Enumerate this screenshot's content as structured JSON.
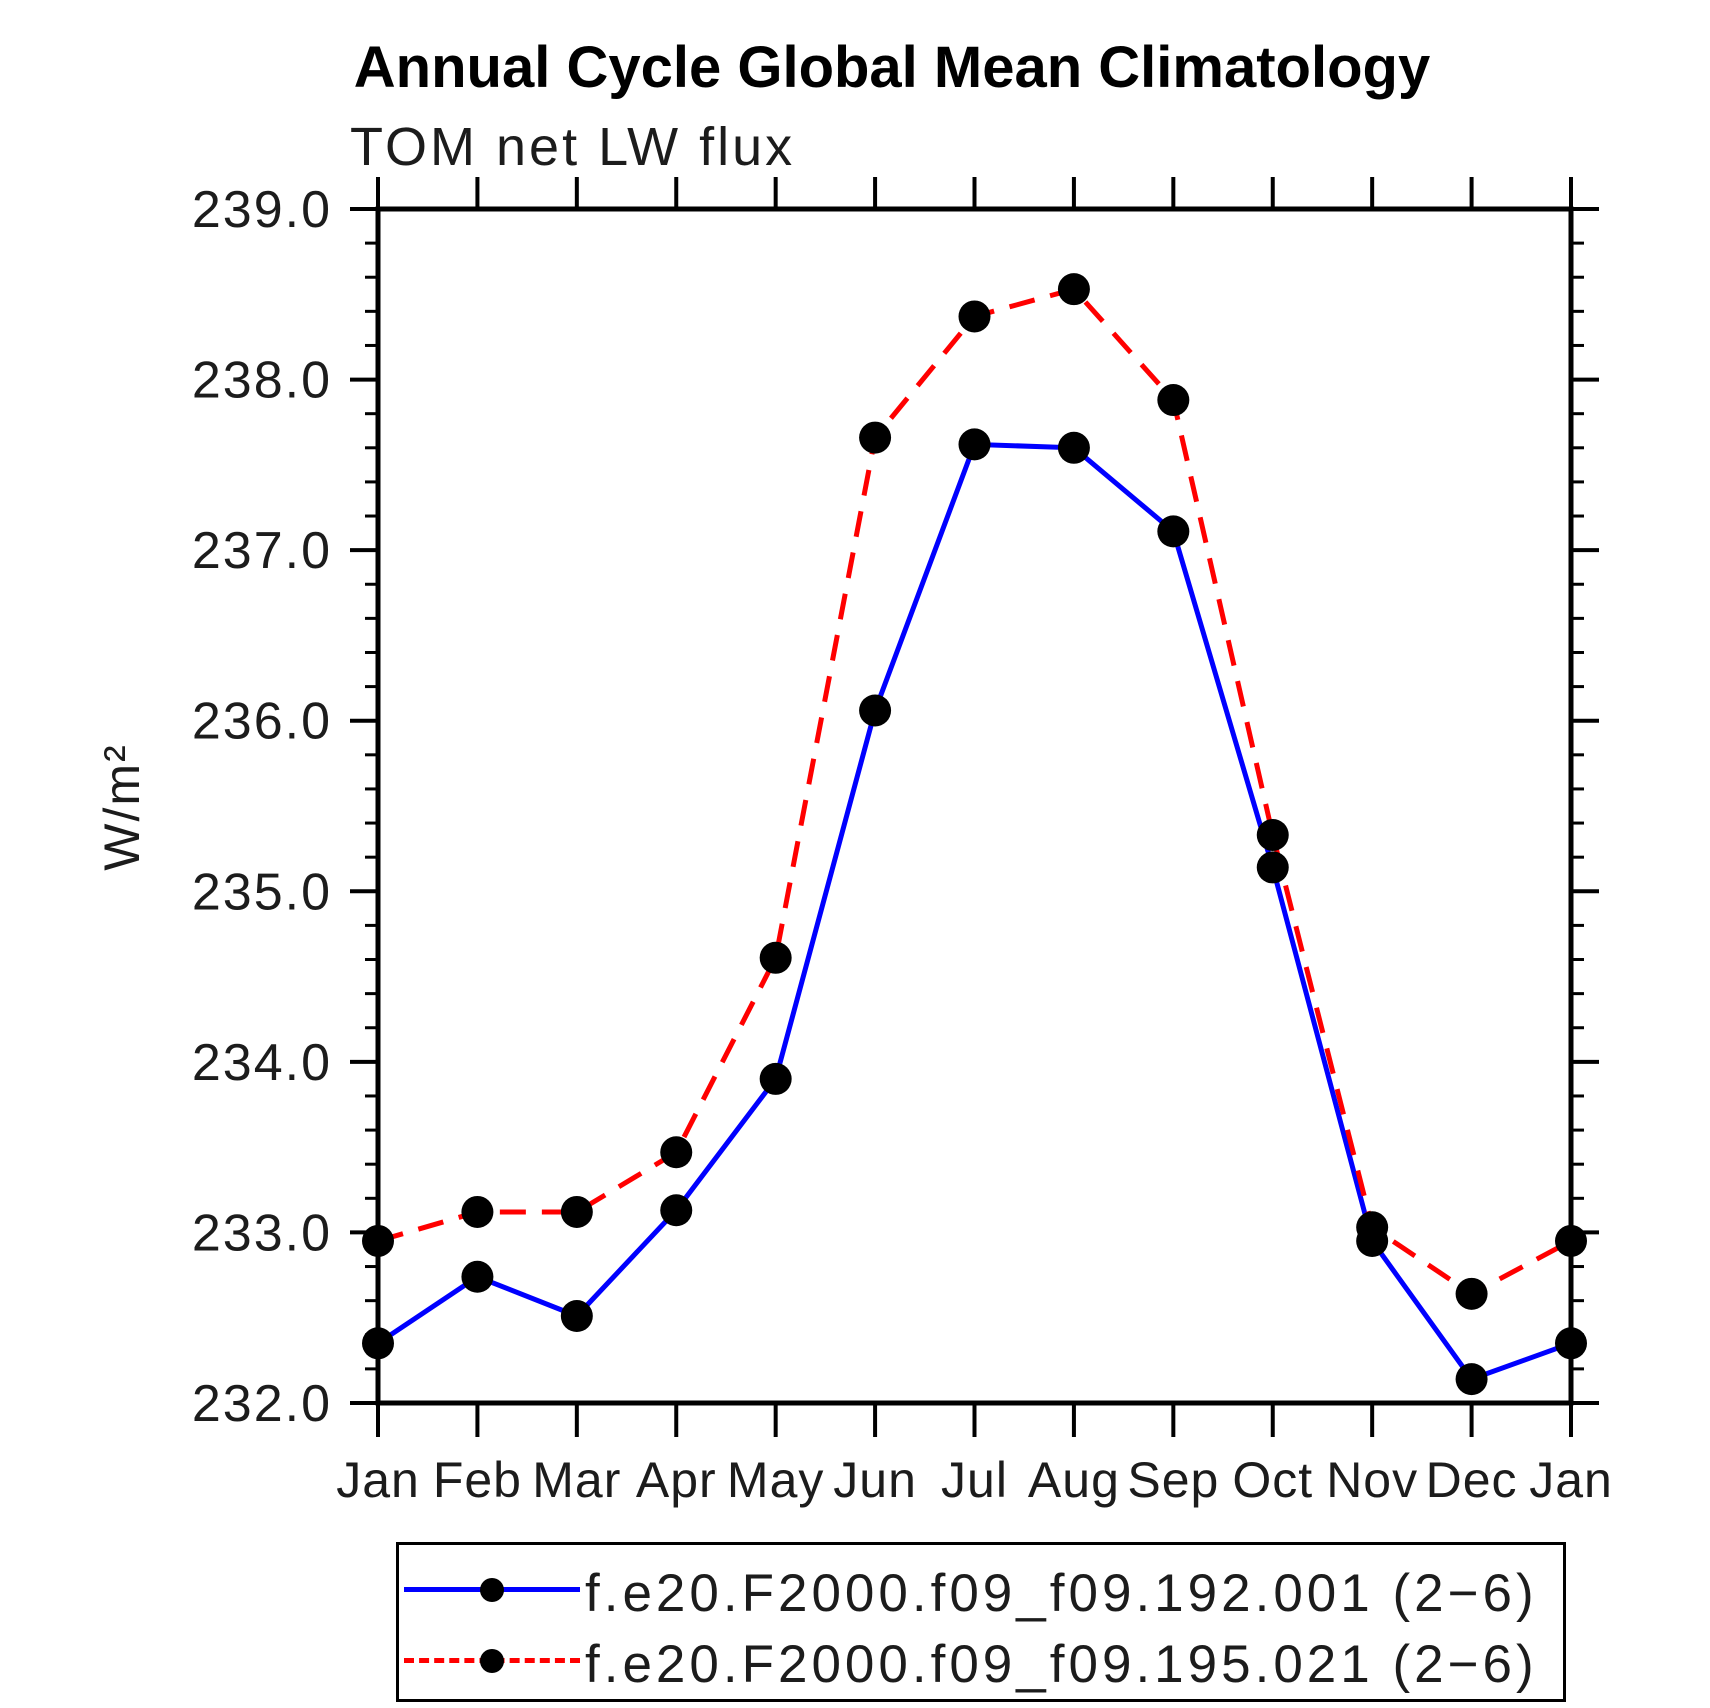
{
  "chart_data": {
    "type": "line",
    "title": "Annual Cycle Global Mean Climatology",
    "subtitle": "TOM net LW flux",
    "ylabel": "W/m²",
    "xlabel": "",
    "categories": [
      "Jan",
      "Feb",
      "Mar",
      "Apr",
      "May",
      "Jun",
      "Jul",
      "Aug",
      "Sep",
      "Oct",
      "Nov",
      "Dec",
      "Jan"
    ],
    "series": [
      {
        "name": "f.e20.F2000.f09_f09.192.001 (2−6)",
        "color": "#0000ff",
        "line_style": "solid",
        "marker": "filled-circle",
        "values": [
          232.35,
          232.74,
          232.51,
          233.13,
          233.9,
          236.06,
          237.62,
          237.6,
          237.11,
          235.14,
          232.95,
          232.14,
          232.35
        ]
      },
      {
        "name": "f.e20.F2000.f09_f09.195.021 (2−6)",
        "color": "#ff0000",
        "line_style": "dashed",
        "marker": "filled-circle",
        "values": [
          232.95,
          233.12,
          233.12,
          233.47,
          234.61,
          237.66,
          238.37,
          238.53,
          237.88,
          235.33,
          233.03,
          232.64,
          232.95
        ]
      }
    ],
    "ylim": [
      232.0,
      239.0
    ],
    "y_major_step": 1.0,
    "y_minor_step": 0.2,
    "y_tick_labels": [
      "232.0",
      "233.0",
      "234.0",
      "235.0",
      "236.0",
      "237.0",
      "238.0",
      "239.0"
    ],
    "grid": false,
    "legend_position": "bottom",
    "marker_color": "#000000",
    "axis_color": "#000000"
  }
}
